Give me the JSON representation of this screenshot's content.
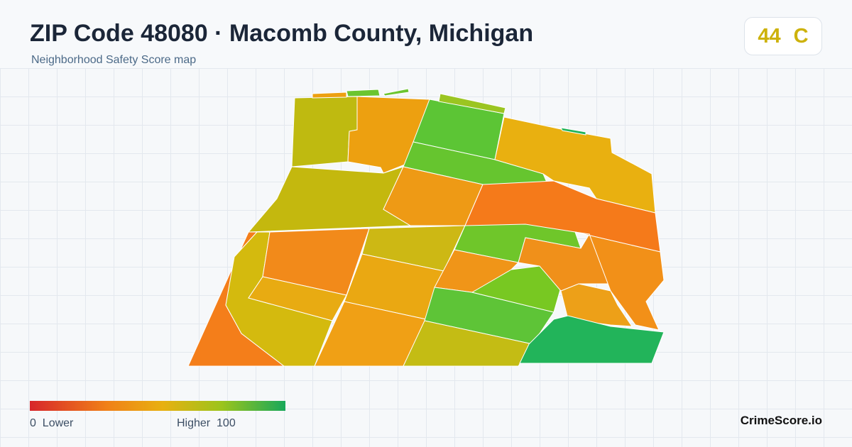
{
  "header": {
    "title": "ZIP Code 48080 · Macomb County, Michigan",
    "subtitle": "Neighborhood Safety Score map"
  },
  "score": {
    "value": 44,
    "grade": "C"
  },
  "legend": {
    "min": 0,
    "min_label": "Lower",
    "max_label": "Higher",
    "max": 100
  },
  "brand": "CrimeScore.io"
}
